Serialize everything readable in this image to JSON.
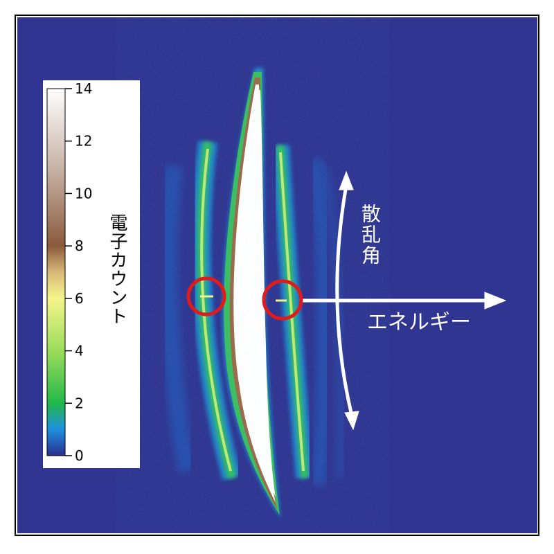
{
  "chart_data": {
    "type": "heatmap",
    "title": "",
    "colorbar": {
      "label": "電子カウント",
      "range": [
        0,
        14
      ],
      "ticks": [
        0,
        2,
        4,
        6,
        8,
        10,
        12,
        14
      ],
      "tick_labels": [
        "0",
        "2",
        "4",
        "6",
        "8",
        "10",
        "12",
        "14"
      ],
      "colormap": [
        {
          "value": 0,
          "color": "#2a2e8c"
        },
        {
          "value": 1,
          "color": "#1f8fe0"
        },
        {
          "value": 2,
          "color": "#22b84a"
        },
        {
          "value": 4,
          "color": "#9bdc5a"
        },
        {
          "value": 6,
          "color": "#f5f58c"
        },
        {
          "value": 7,
          "color": "#d8b878"
        },
        {
          "value": 8,
          "color": "#8a5a3c"
        },
        {
          "value": 11,
          "color": "#c8b4a8"
        },
        {
          "value": 14,
          "color": "#ffffff"
        }
      ]
    },
    "background_color": "#2f3590",
    "annotations": {
      "vertical_arrow_label": "散乱角",
      "horizontal_arrow_label": "エネルギー",
      "circle_color": "#e11b1b",
      "arrow_color": "#ffffff"
    }
  }
}
